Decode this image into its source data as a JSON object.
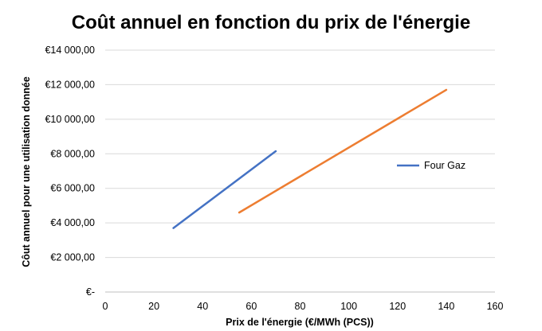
{
  "chart_data": {
    "type": "line",
    "title": "Coût annuel en fonction du prix de l'énergie",
    "xlabel": "Prix de l'énergie (€/MWh (PCS))",
    "ylabel": "Côut annuel pour une utilisation donnée",
    "xlim": [
      0,
      160
    ],
    "ylim": [
      0,
      14000
    ],
    "x_ticks": [
      0,
      20,
      40,
      60,
      80,
      100,
      120,
      140,
      160
    ],
    "y_ticks": [
      0,
      2000,
      4000,
      6000,
      8000,
      10000,
      12000,
      14000
    ],
    "y_tick_labels": [
      "€-",
      "€2 000,00",
      "€4 000,00",
      "€6 000,00",
      "€8 000,00",
      "€10 000,00",
      "€12 000,00",
      "€14 000,00"
    ],
    "grid": "horizontal",
    "legend_position": "right",
    "series": [
      {
        "name": "Four Gaz",
        "color": "#4472C4",
        "x": [
          28,
          70
        ],
        "y": [
          3700,
          8150
        ]
      },
      {
        "color": "#ED7D31",
        "x": [
          55,
          140
        ],
        "y": [
          4600,
          11700
        ]
      }
    ]
  }
}
